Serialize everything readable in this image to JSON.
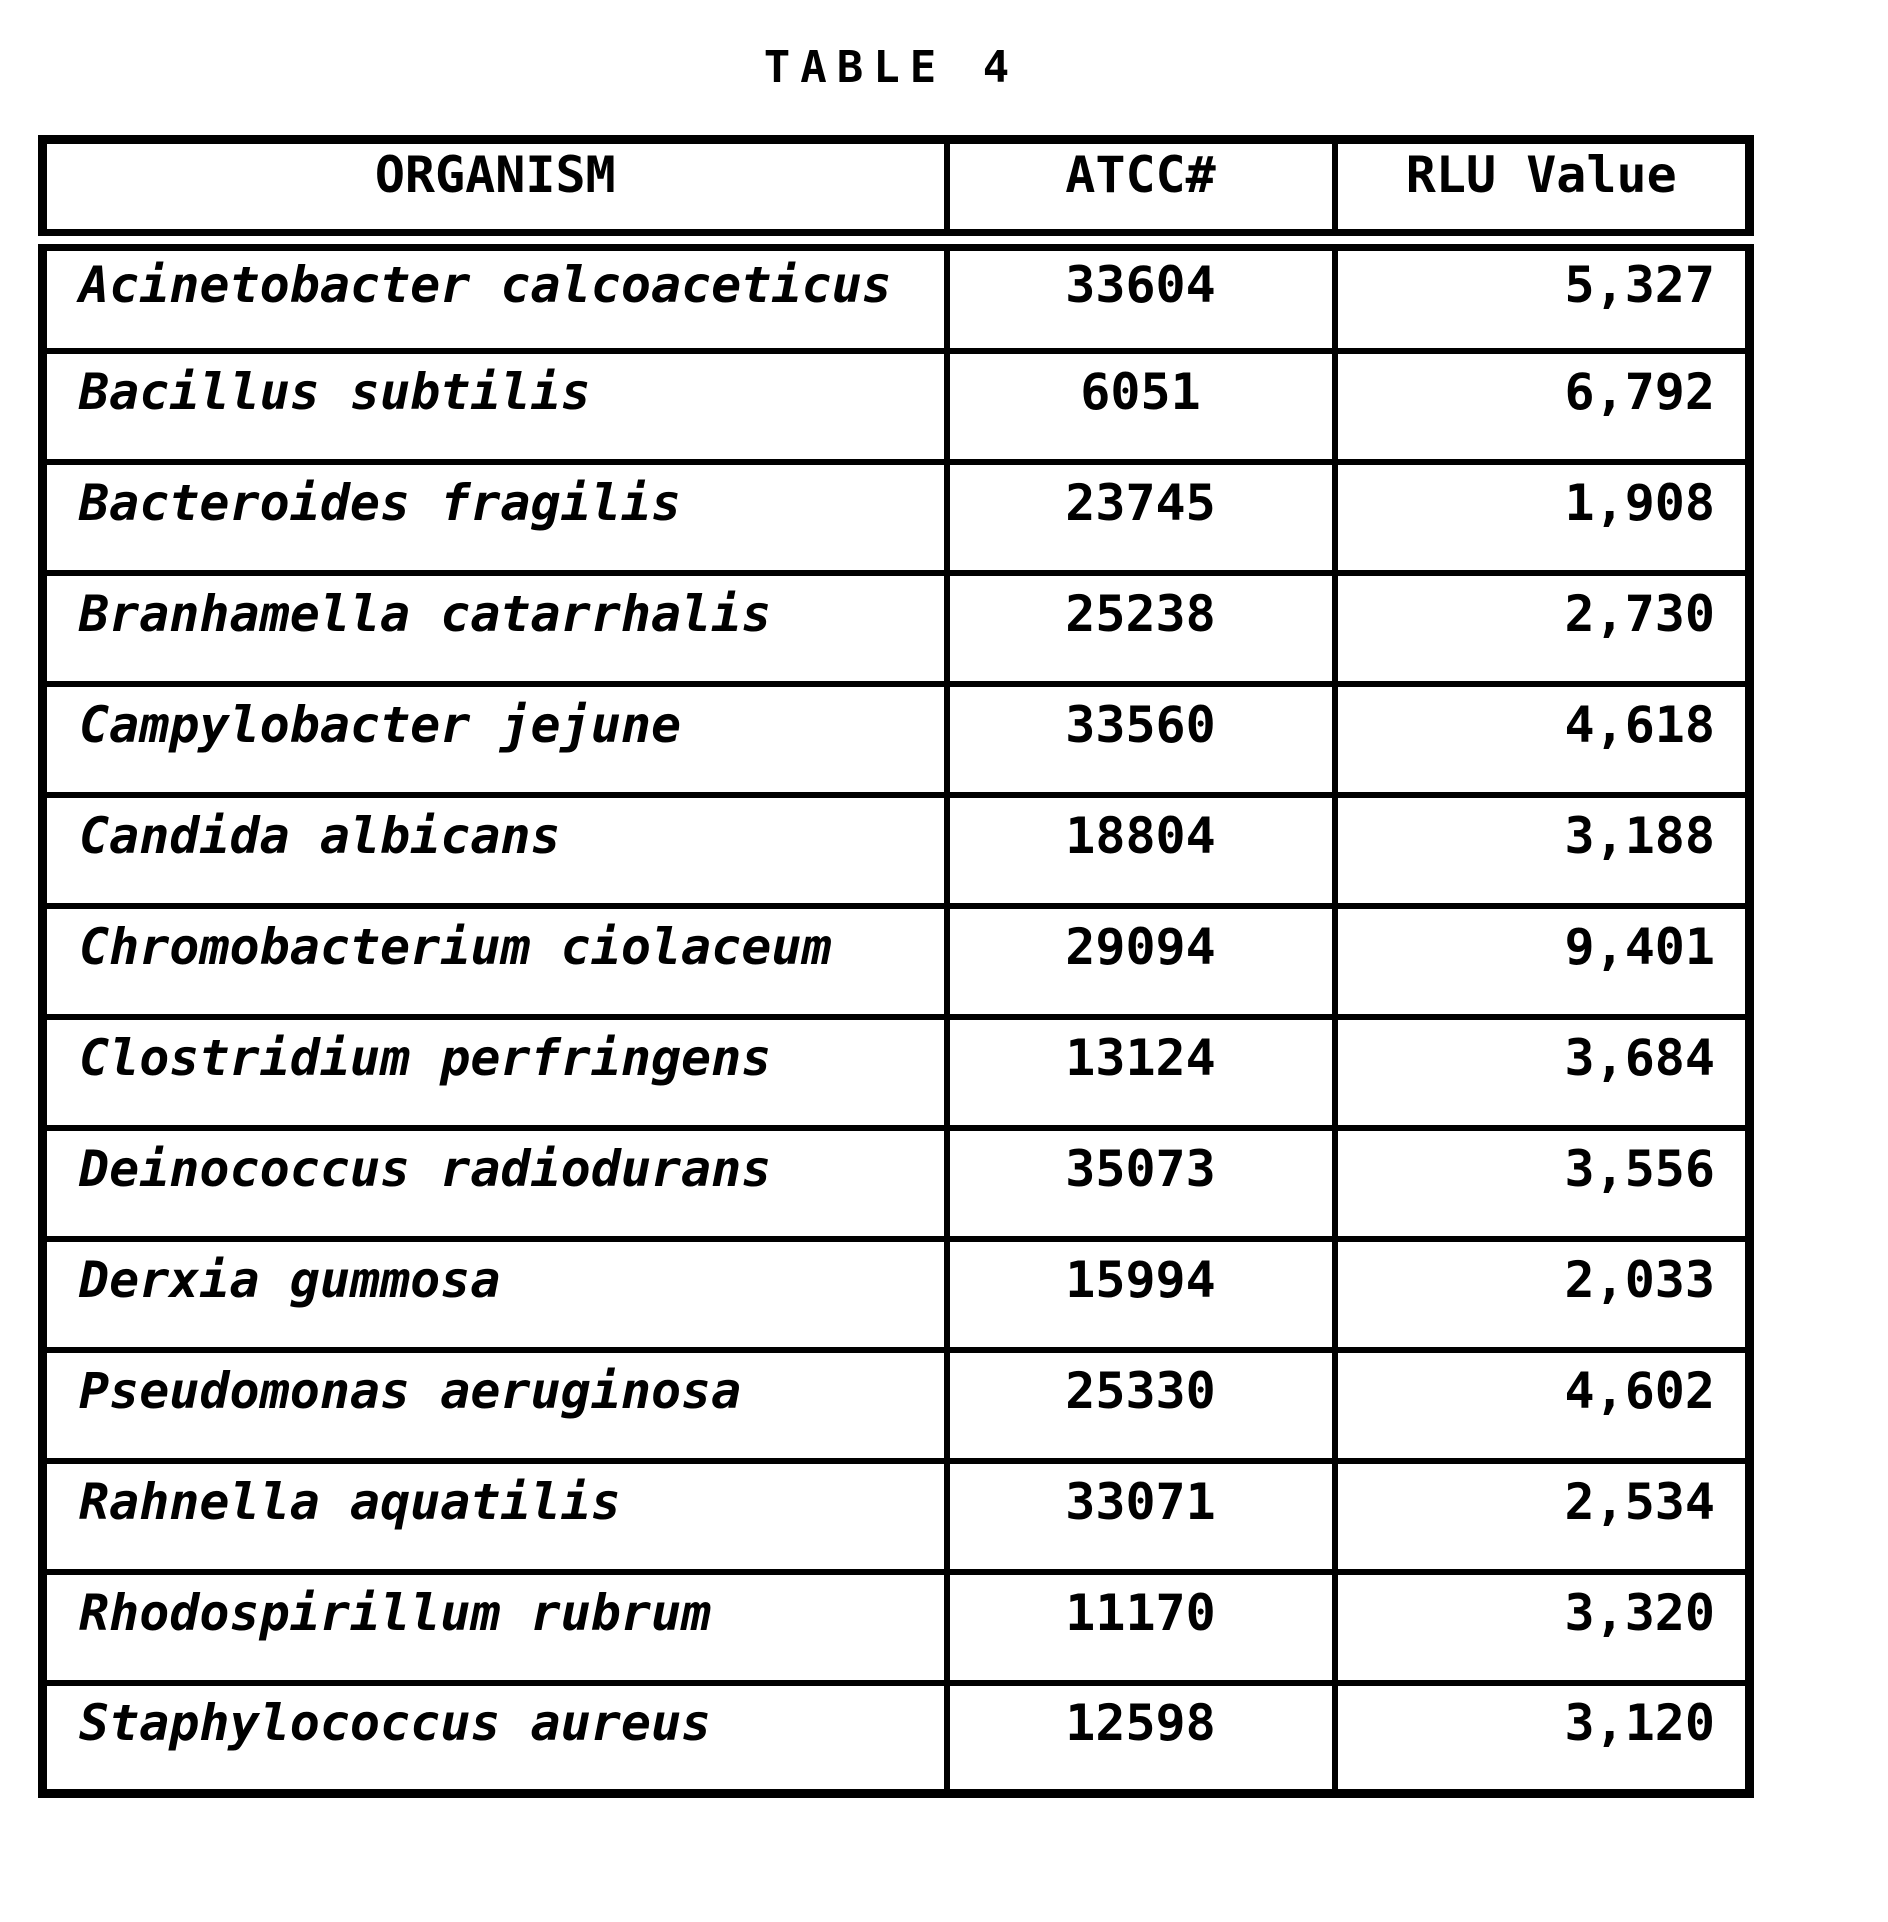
{
  "document": {
    "title": "TABLE 4"
  },
  "table": {
    "columns": [
      "ORGANISM",
      "ATCC#",
      "RLU Value"
    ],
    "rows": [
      {
        "organism": "Acinetobacter calcoaceticus",
        "atcc": "33604",
        "rlu": "5,327"
      },
      {
        "organism": "Bacillus subtilis",
        "atcc": "6051",
        "rlu": "6,792"
      },
      {
        "organism": "Bacteroides fragilis",
        "atcc": "23745",
        "rlu": "1,908"
      },
      {
        "organism": "Branhamella catarrhalis",
        "atcc": "25238",
        "rlu": "2,730"
      },
      {
        "organism": "Campylobacter jejune",
        "atcc": "33560",
        "rlu": "4,618"
      },
      {
        "organism": "Candida albicans",
        "atcc": "18804",
        "rlu": "3,188"
      },
      {
        "organism": "Chromobacterium ciolaceum",
        "atcc": "29094",
        "rlu": "9,401"
      },
      {
        "organism": "Clostridium perfringens",
        "atcc": "13124",
        "rlu": "3,684"
      },
      {
        "organism": "Deinococcus radiodurans",
        "atcc": "35073",
        "rlu": "3,556"
      },
      {
        "organism": "Derxia gummosa",
        "atcc": "15994",
        "rlu": "2,033"
      },
      {
        "organism": "Pseudomonas aeruginosa",
        "atcc": "25330",
        "rlu": "4,602"
      },
      {
        "organism": "Rahnella aquatilis",
        "atcc": "33071",
        "rlu": "2,534"
      },
      {
        "organism": "Rhodospirillum rubrum",
        "atcc": "11170",
        "rlu": "3,320"
      },
      {
        "organism": "Staphylococcus aureus",
        "atcc": "12598",
        "rlu": "3,120"
      }
    ]
  }
}
